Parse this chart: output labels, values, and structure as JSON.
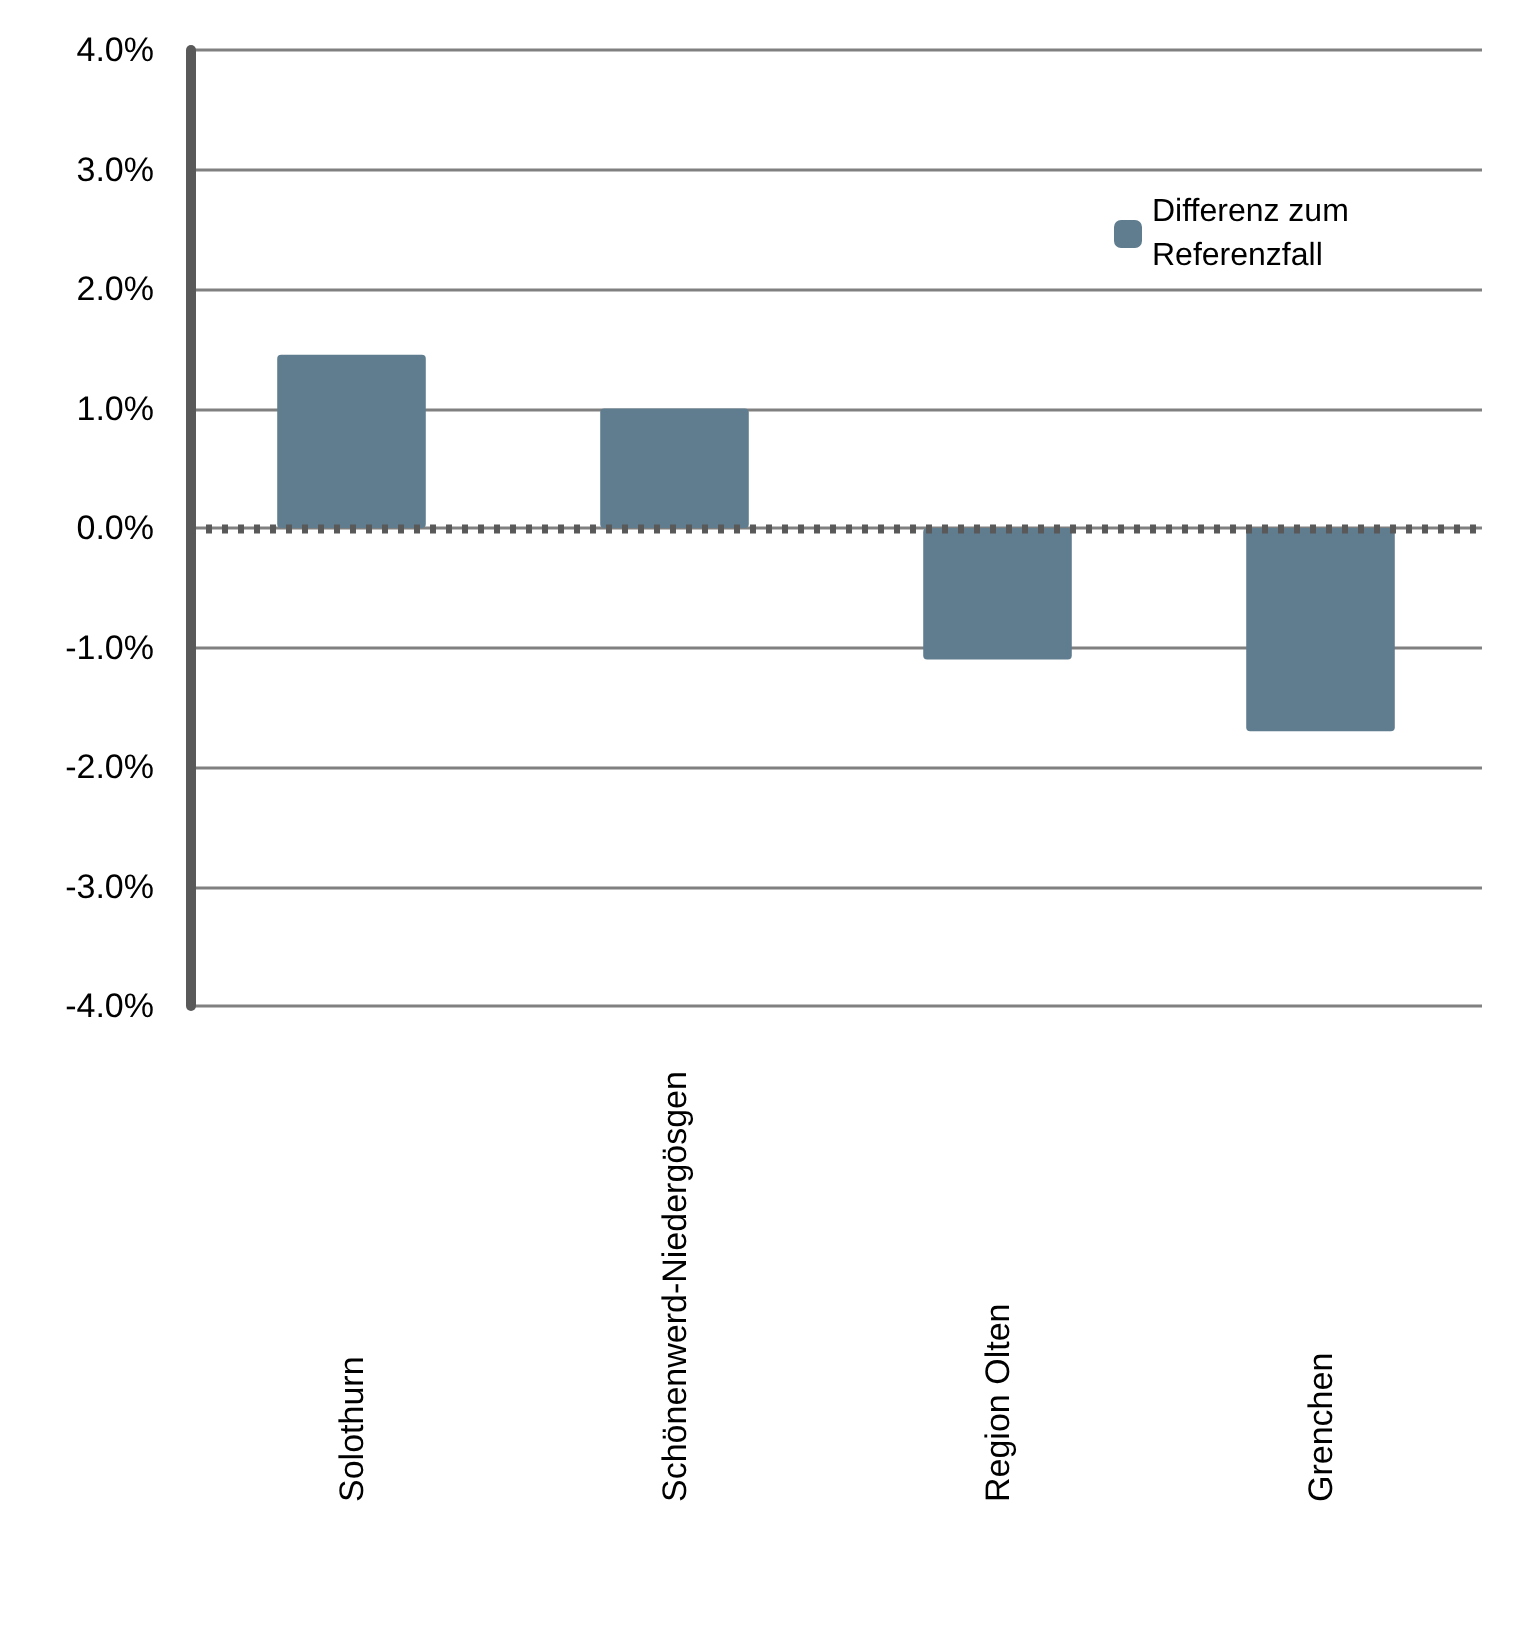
{
  "chart_data": {
    "type": "bar",
    "categories": [
      "Solothurn",
      "Schönenwerd-Niedergösgen",
      "Region Olten",
      "Grenchen"
    ],
    "series": [
      {
        "name": "Differenz zum Referenzfall",
        "color": "#607d8f",
        "values": [
          1.45,
          1.0,
          -1.1,
          -1.7
        ]
      }
    ],
    "ylim": [
      -4,
      4
    ],
    "yticks": [
      {
        "value": -4,
        "label": "-4.0%"
      },
      {
        "value": -3,
        "label": "-3.0%"
      },
      {
        "value": -2,
        "label": "-2.0%"
      },
      {
        "value": -1,
        "label": "-1.0%"
      },
      {
        "value": 0,
        "label": "0.0%"
      },
      {
        "value": 1,
        "label": "1.0%"
      },
      {
        "value": 2,
        "label": "2.0%"
      },
      {
        "value": 3,
        "label": "3.0%"
      },
      {
        "value": 4,
        "label": "4.0%"
      }
    ],
    "ref_lines": [
      {
        "axis": "y",
        "value": 0,
        "color": "#595959",
        "line_style": "dotted"
      }
    ],
    "grid": "y",
    "legend": "top right"
  }
}
